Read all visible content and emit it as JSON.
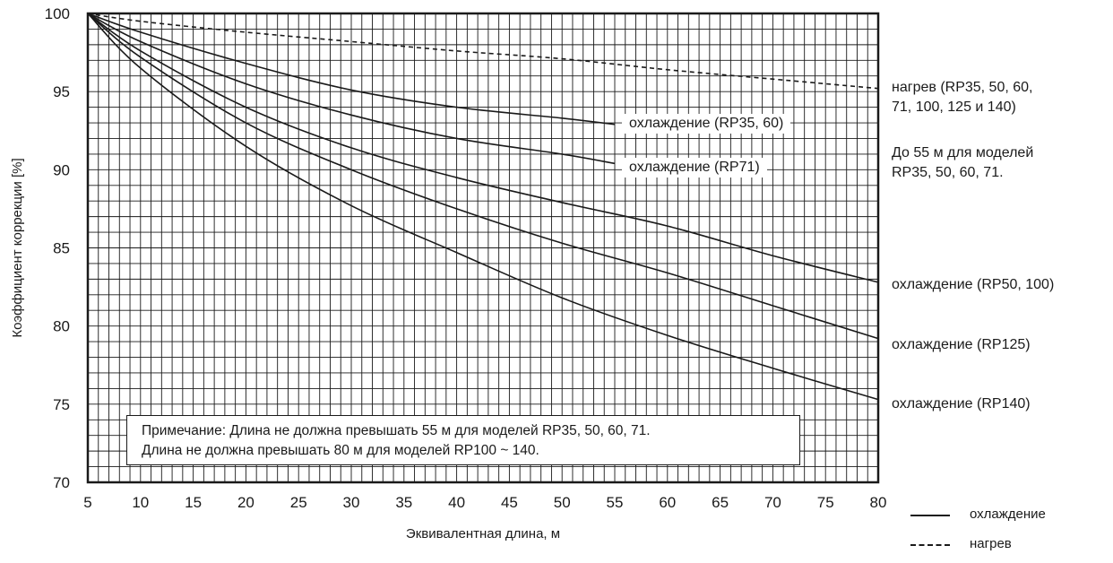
{
  "chart_data": {
    "type": "line",
    "xlabel": "Эквивалентная длина, м",
    "ylabel": "Коэффициент коррекции [%]",
    "xlim": [
      5,
      80
    ],
    "ylim": [
      70,
      100
    ],
    "x_ticks": [
      "5",
      "10",
      "15",
      "20",
      "25",
      "30",
      "35",
      "40",
      "45",
      "50",
      "55",
      "60",
      "65",
      "70",
      "75",
      "80"
    ],
    "y_ticks": [
      "70",
      "75",
      "80",
      "85",
      "90",
      "95",
      "100"
    ],
    "grid": true,
    "series": [
      {
        "name": "нагрев (RP35, 50, 60, 71, 100, 125 и 140)",
        "style": "dashed",
        "x": [
          5,
          10,
          20,
          30,
          40,
          50,
          60,
          70,
          80
        ],
        "y": [
          100,
          99.5,
          98.8,
          98.2,
          97.6,
          97.1,
          96.4,
          95.8,
          95.2
        ]
      },
      {
        "name": "охлаждение (RP35, 60)",
        "style": "solid",
        "x": [
          5,
          10,
          20,
          30,
          40,
          50,
          55
        ],
        "y": [
          100,
          98.8,
          96.8,
          95.1,
          94.0,
          93.3,
          92.9
        ]
      },
      {
        "name": "охлаждение (RP71)",
        "style": "solid",
        "x": [
          5,
          10,
          20,
          30,
          40,
          50,
          55
        ],
        "y": [
          100,
          98.2,
          95.5,
          93.5,
          92.0,
          91.0,
          90.4
        ]
      },
      {
        "name": "охлаждение (RP50, 100)",
        "style": "solid",
        "x": [
          5,
          10,
          20,
          30,
          40,
          50,
          60,
          70,
          80
        ],
        "y": [
          100,
          97.6,
          94.0,
          91.4,
          89.5,
          87.9,
          86.4,
          84.5,
          82.8
        ]
      },
      {
        "name": "охлаждение (RP125)",
        "style": "solid",
        "x": [
          5,
          10,
          20,
          30,
          40,
          50,
          60,
          70,
          80
        ],
        "y": [
          100,
          97.2,
          93.0,
          90.0,
          87.5,
          85.3,
          83.4,
          81.3,
          79.2
        ]
      },
      {
        "name": "охлаждение (RP140)",
        "style": "solid",
        "x": [
          5,
          10,
          20,
          30,
          40,
          50,
          60,
          70,
          80
        ],
        "y": [
          100,
          96.5,
          91.5,
          87.7,
          84.7,
          81.8,
          79.4,
          77.3,
          75.3
        ]
      }
    ],
    "legend": [
      {
        "style": "solid",
        "label": "охлаждение"
      },
      {
        "style": "dashed",
        "label": "нагрев"
      }
    ]
  },
  "labels": {
    "heating_line1": "нагрев (RP35, 50, 60,",
    "heating_line2": "71, 100, 125 и 140)",
    "limit_line1": "До 55 м для моделей",
    "limit_line2": "RP35,  50, 60, 71.",
    "cool_rp35_60": "охлаждение (RP35, 60)",
    "cool_rp71": "охлаждение (RP71)",
    "cool_rp50_100": "охлаждение (RP50, 100)",
    "cool_rp125": "охлаждение (RP125)",
    "cool_rp140": "охлаждение (RP140)"
  },
  "note": {
    "line1": "Примечание: Длина не должна превышать 55 м для моделей RP35, 50, 60, 71.",
    "line2": "Длина не должна превышать 80 м для моделей RP100 ~ 140."
  },
  "colors": {
    "line": "#1a1a1a",
    "grid": "#1a1a1a",
    "background": "#ffffff"
  }
}
